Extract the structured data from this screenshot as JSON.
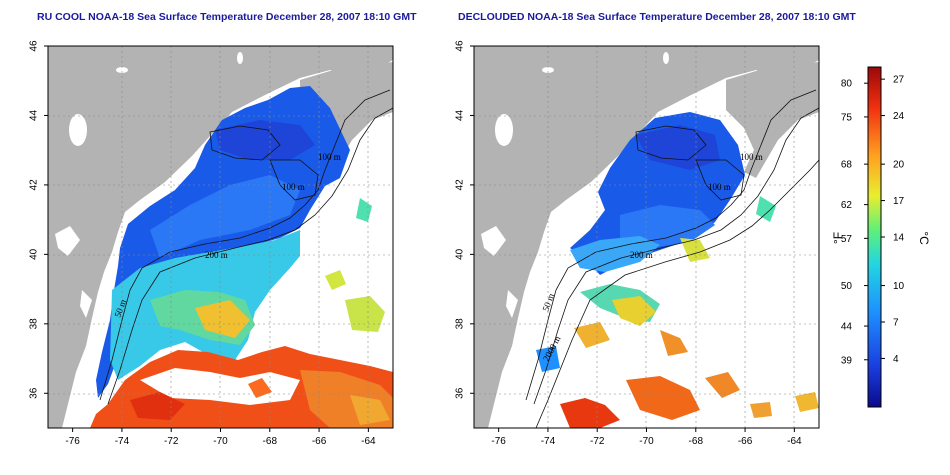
{
  "panels": [
    {
      "title": "RU COOL NOAA-18 Sea Surface Temperature December 28, 2007 18:10 GMT",
      "x_ticks": [
        "-76",
        "-74",
        "-72",
        "-70",
        "-68",
        "-66",
        "-64"
      ],
      "y_ticks": [
        "36",
        "38",
        "40",
        "42",
        "44",
        "46"
      ],
      "contour_labels": [
        "100 m",
        "100 m",
        "200 m",
        "50 m"
      ],
      "cloud_masked": false
    },
    {
      "title": "DECLOUDED NOAA-18 Sea Surface Temperature December 28, 2007 18:10 GMT",
      "x_ticks": [
        "-76",
        "-74",
        "-72",
        "-70",
        "-68",
        "-66",
        "-64"
      ],
      "y_ticks": [
        "36",
        "38",
        "40",
        "42",
        "44",
        "46"
      ],
      "contour_labels": [
        "100 m",
        "100 m",
        "200 m",
        "50 m",
        "2000 m"
      ],
      "cloud_masked": true
    }
  ],
  "map_extent": {
    "lon": [
      -77,
      -63
    ],
    "lat": [
      35,
      46
    ]
  },
  "colorbar": {
    "fahrenheit_unit": "°F",
    "celsius_unit": "°C",
    "fahrenheit_ticks": [
      "80",
      "75",
      "68",
      "62",
      "57",
      "50",
      "44",
      "39"
    ],
    "celsius_ticks": [
      "27",
      "24",
      "20",
      "17",
      "14",
      "10",
      "7",
      "4"
    ],
    "range_celsius": [
      0,
      28
    ],
    "colors": [
      "#0a0a8c",
      "#1a3ee0",
      "#1e90ff",
      "#22d6e0",
      "#5ef07a",
      "#e8ee30",
      "#ffa020",
      "#f03010",
      "#9a0808"
    ]
  },
  "colors": {
    "land": "#b3b3b3",
    "title": "#1a1a9c"
  }
}
